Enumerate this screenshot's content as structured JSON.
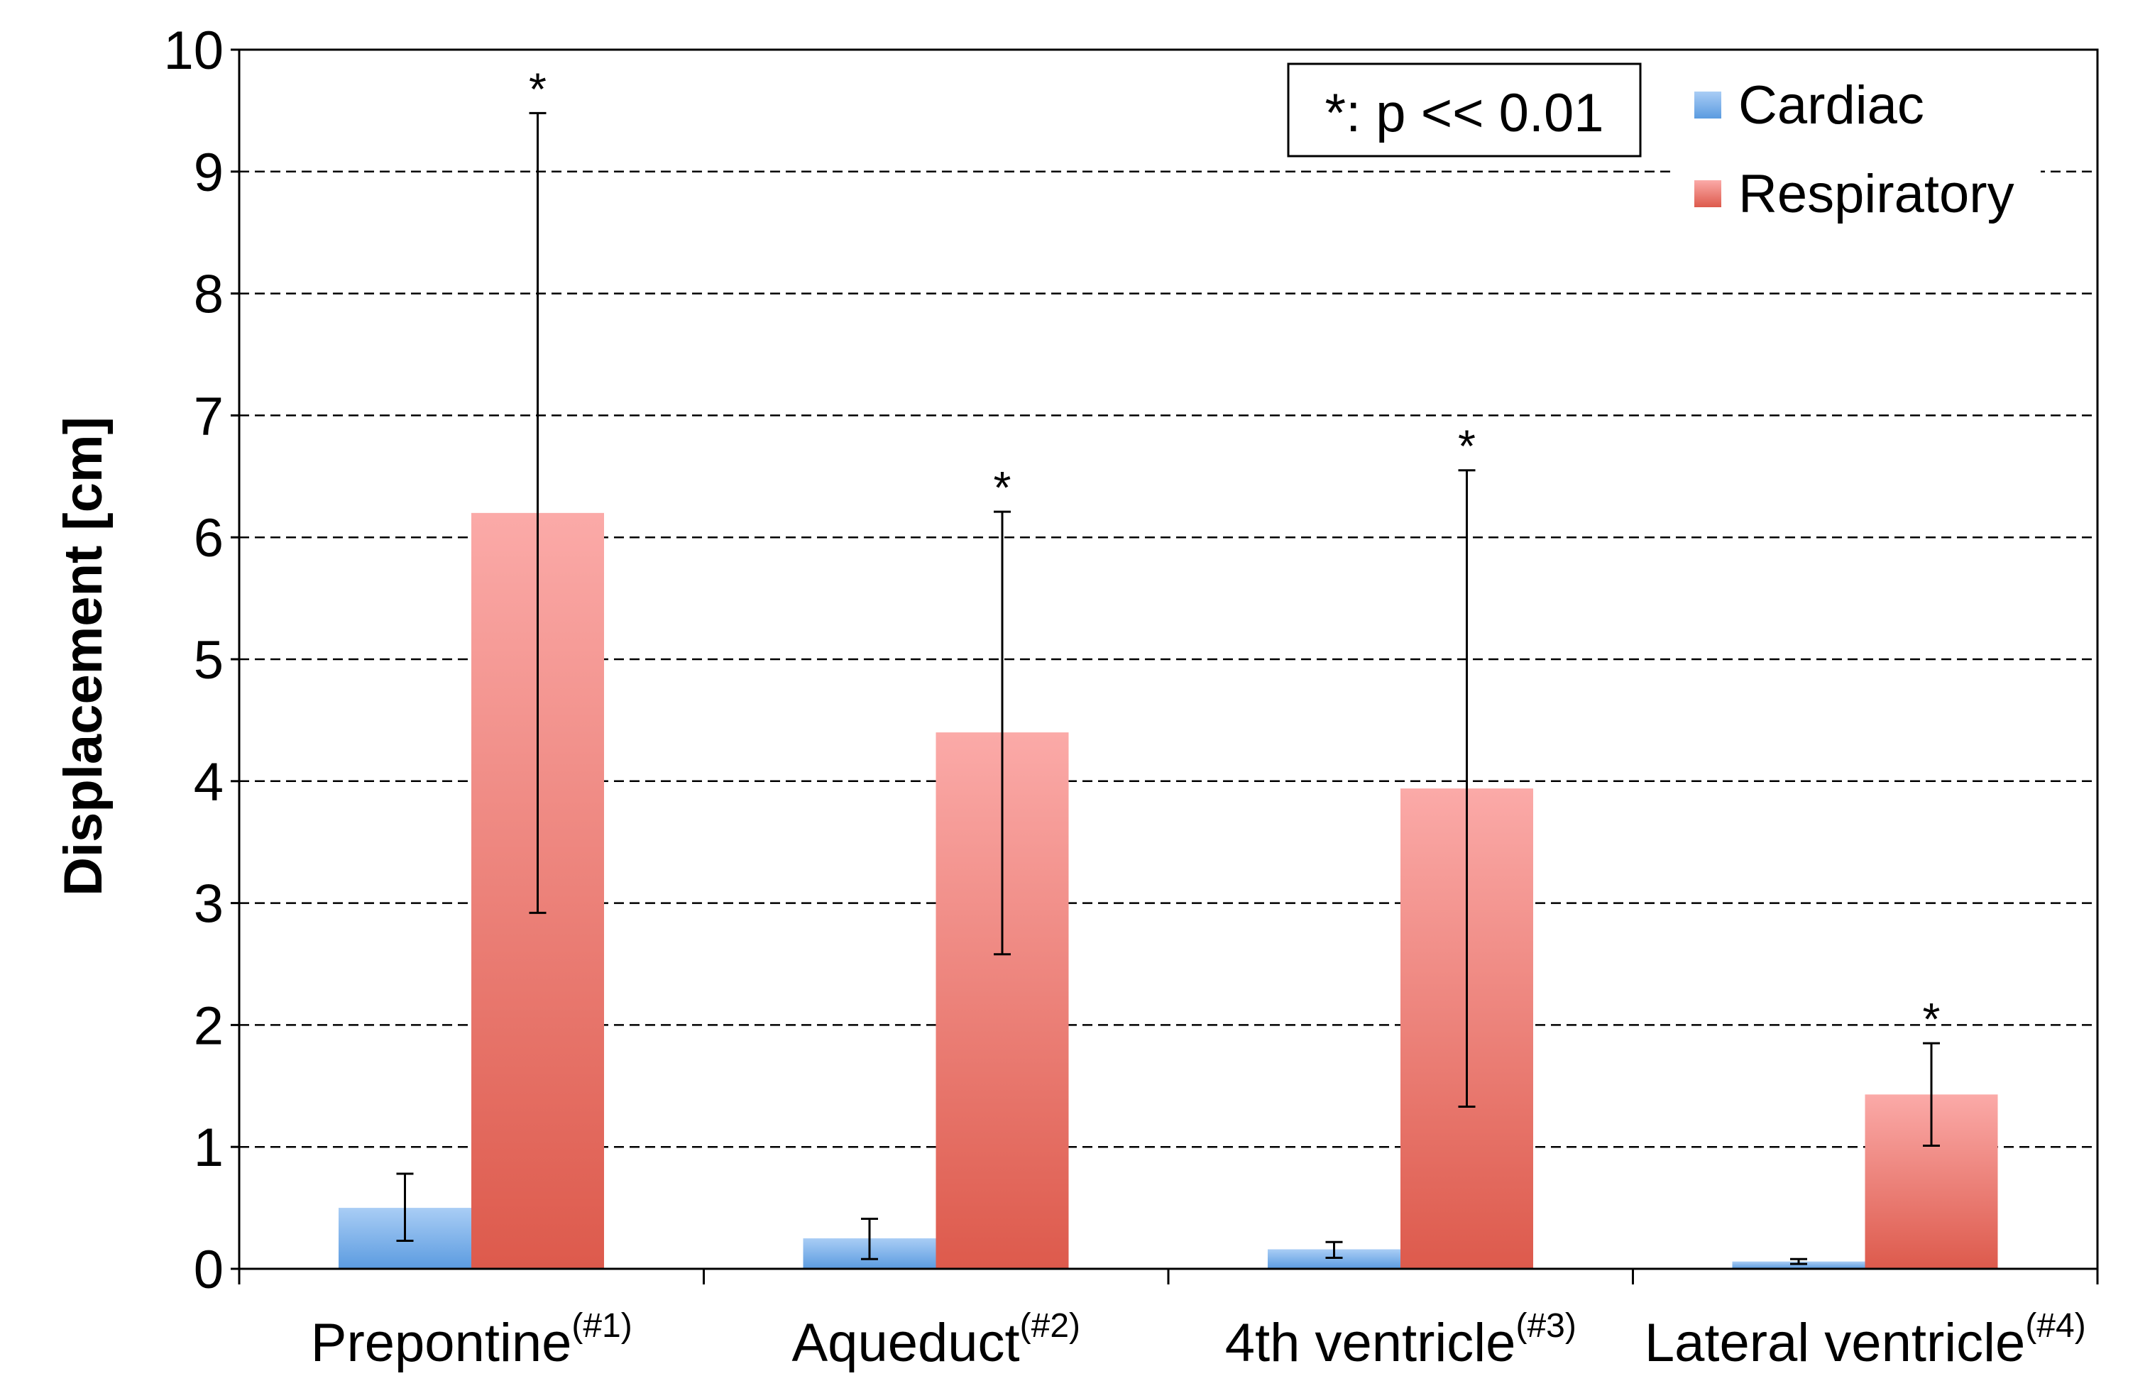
{
  "chart_data": {
    "type": "bar",
    "title": "",
    "xlabel": "",
    "ylabel": "Displacement [cm]",
    "ylim": [
      0,
      10
    ],
    "yticks": [
      0,
      1,
      2,
      3,
      4,
      5,
      6,
      7,
      8,
      9,
      10
    ],
    "grid": "horizontal dashed",
    "legend_position": "top-right",
    "categories": [
      {
        "label": "Prepontine",
        "sup": "(#1)"
      },
      {
        "label": "Aqueduct",
        "sup": "(#2)"
      },
      {
        "label": "4th ventricle",
        "sup": "(#3)"
      },
      {
        "label": "Lateral ventricle",
        "sup": "(#4)"
      }
    ],
    "series": [
      {
        "name": "Cardiac",
        "color_top": "#a9cdf5",
        "color_bottom": "#5b9be0",
        "values": [
          0.5,
          0.25,
          0.16,
          0.06
        ],
        "error_low": [
          0.23,
          0.08,
          0.09,
          0.04
        ],
        "error_high": [
          0.78,
          0.41,
          0.22,
          0.08
        ]
      },
      {
        "name": "Respiratory",
        "color_top": "#fbaaa8",
        "color_bottom": "#dd5a4c",
        "values": [
          6.2,
          4.4,
          3.94,
          1.43
        ],
        "error_low": [
          2.92,
          2.58,
          1.33,
          1.01
        ],
        "error_high": [
          9.48,
          6.21,
          6.55,
          1.85
        ]
      }
    ],
    "significance_marker": "*",
    "significant": [
      true,
      true,
      true,
      true
    ],
    "annotation": "*: p << 0.01"
  }
}
